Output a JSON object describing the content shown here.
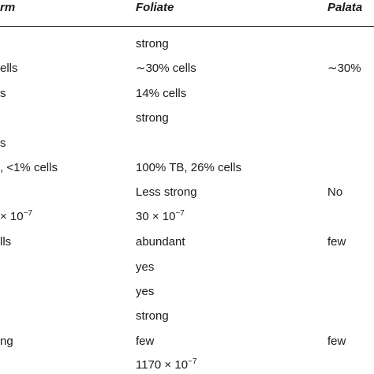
{
  "table": {
    "header": [
      "rm",
      "Foliate",
      "Palata"
    ],
    "rows": [
      [
        null,
        {
          "text": "strong"
        },
        null
      ],
      [
        {
          "text": "ells"
        },
        {
          "text": "∼30% cells"
        },
        {
          "text": "∼30%"
        }
      ],
      [
        {
          "text": "s"
        },
        {
          "text": "14% cells"
        },
        null
      ],
      [
        null,
        {
          "text": "strong"
        },
        null
      ],
      [
        {
          "text": "s"
        },
        null,
        null
      ],
      [
        {
          "text": ", <1% cells"
        },
        {
          "text": "100% TB, 26% cells"
        },
        null
      ],
      [
        null,
        {
          "text": "Less strong"
        },
        {
          "text": "No"
        }
      ],
      [
        {
          "text": "× 10",
          "sup": "−7"
        },
        {
          "text": "30 × 10",
          "sup": "−7"
        },
        null
      ],
      [
        {
          "text": "lls"
        },
        {
          "text": "abundant"
        },
        {
          "text": "few"
        }
      ],
      [
        null,
        {
          "text": "yes"
        },
        null
      ],
      [
        null,
        {
          "text": "yes"
        },
        null
      ],
      [
        null,
        {
          "text": "strong"
        },
        null
      ],
      [
        {
          "text": "ng"
        },
        {
          "text": "few"
        },
        {
          "text": "few"
        }
      ],
      [
        null,
        {
          "text": "1170 × 10",
          "sup": "−7"
        },
        null
      ]
    ]
  }
}
